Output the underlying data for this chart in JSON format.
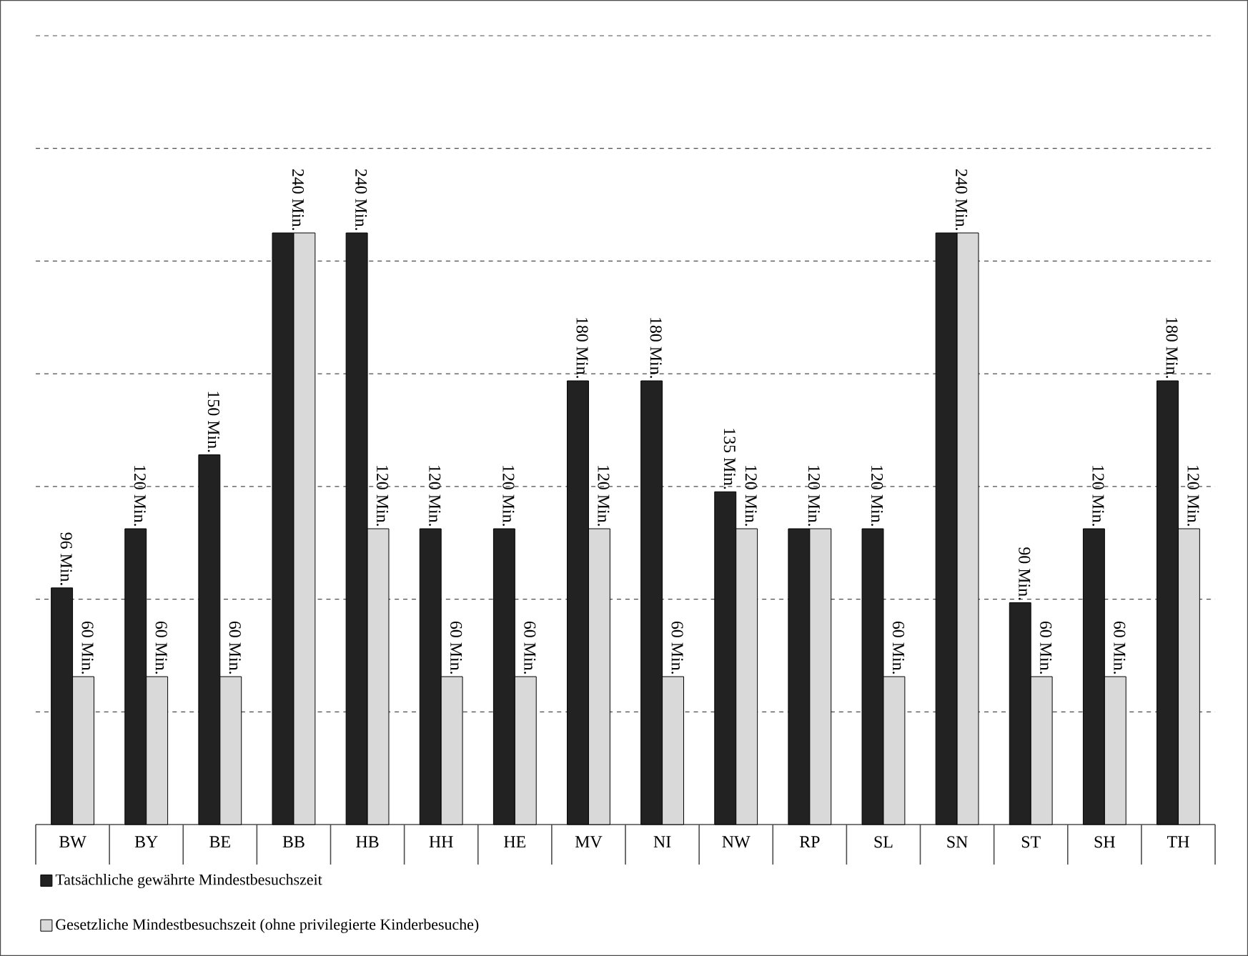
{
  "chart_data": {
    "type": "bar",
    "categories": [
      "BW",
      "BY",
      "BE",
      "BB",
      "HB",
      "HH",
      "HE",
      "MV",
      "NI",
      "NW",
      "RP",
      "SL",
      "SN",
      "ST",
      "SH",
      "TH"
    ],
    "series": [
      {
        "name": "Tatsächliche gewährte Mindestbesuchszeit",
        "color": "#222222",
        "values": [
          96,
          120,
          150,
          240,
          240,
          120,
          120,
          180,
          180,
          135,
          120,
          120,
          240,
          90,
          120,
          180
        ],
        "value_labels": [
          "96 Min.",
          "120 Min.",
          "150 Min.",
          "240 Min.",
          "240 Min.",
          "120 Min.",
          "120 Min.",
          "180 Min.",
          "180 Min.",
          "135 Min.",
          "120 Min.",
          "120 Min.",
          "240 Min.",
          "90 Min.",
          "120 Min.",
          "180 Min."
        ]
      },
      {
        "name": "Gesetzliche Mindestbesuchszeit (ohne privilegierte Kinderbesuche)",
        "color": "#d9d9d9",
        "values": [
          60,
          60,
          60,
          240,
          120,
          60,
          60,
          120,
          60,
          120,
          120,
          60,
          240,
          60,
          60,
          120
        ],
        "value_labels": [
          "60 Min.",
          "60 Min.",
          "60 Min.",
          null,
          "120 Min.",
          "60 Min.",
          "60 Min.",
          "120 Min.",
          "60 Min.",
          "120 Min.",
          null,
          "60 Min.",
          null,
          "60 Min.",
          "60 Min.",
          "120 Min."
        ]
      }
    ],
    "ylim": [
      0,
      320
    ],
    "yticks": [
      {
        "value": 45.71,
        "label": null
      },
      {
        "value": 91.43,
        "label": null
      },
      {
        "value": 137.14,
        "label": null
      },
      {
        "value": 182.86,
        "label": null
      },
      {
        "value": 228.57,
        "label": null
      },
      {
        "value": 274.29,
        "label": null
      },
      {
        "value": 320,
        "label": null
      }
    ],
    "grid": "y",
    "legend": "bottom",
    "tick_labels": "x"
  }
}
